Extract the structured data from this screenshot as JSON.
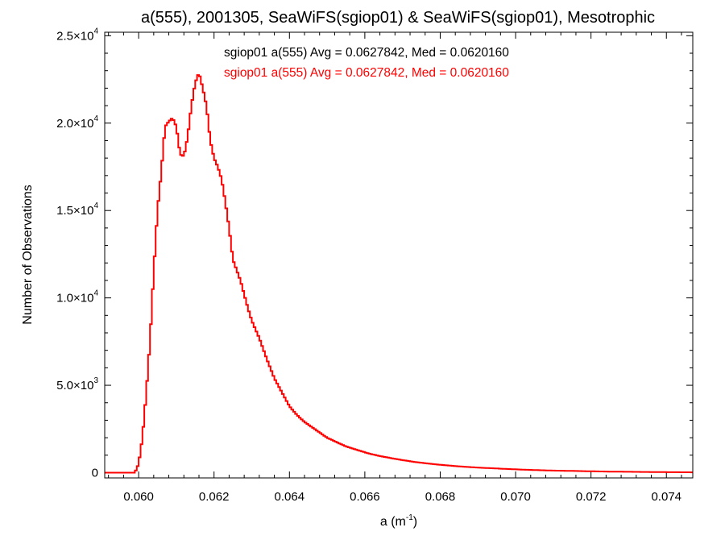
{
  "chart_data": {
    "type": "line",
    "title": "a(555), 2001305, SeaWiFS(sgiop01) & SeaWiFS(sgiop01), Mesotrophic",
    "xlabel_base": "a (m",
    "xlabel_sup": "-1",
    "xlabel_end": ")",
    "ylabel": "Number of Observations",
    "xlim": [
      0.0591,
      0.0747
    ],
    "ylim": [
      -300,
      25200
    ],
    "grid": false,
    "x_ticks": [
      {
        "value": 0.06,
        "label": "0.060"
      },
      {
        "value": 0.062,
        "label": "0.062"
      },
      {
        "value": 0.064,
        "label": "0.064"
      },
      {
        "value": 0.066,
        "label": "0.066"
      },
      {
        "value": 0.068,
        "label": "0.068"
      },
      {
        "value": 0.07,
        "label": "0.070"
      },
      {
        "value": 0.072,
        "label": "0.072"
      },
      {
        "value": 0.074,
        "label": "0.074"
      }
    ],
    "y_ticks": [
      {
        "value": 0,
        "mantissa": "0",
        "exponent": ""
      },
      {
        "value": 5000,
        "mantissa": "5.0×10",
        "exponent": "3"
      },
      {
        "value": 10000,
        "mantissa": "1.0×10",
        "exponent": "4"
      },
      {
        "value": 15000,
        "mantissa": "1.5×10",
        "exponent": "4"
      },
      {
        "value": 20000,
        "mantissa": "2.0×10",
        "exponent": "4"
      },
      {
        "value": 25000,
        "mantissa": "2.5×10",
        "exponent": "4"
      }
    ],
    "legend": [
      {
        "text": "sgiop01 a(555) Avg = 0.0627842, Med = 0.0620160",
        "color": "#000000"
      },
      {
        "text": "sgiop01 a(555) Avg = 0.0627842, Med = 0.0620160",
        "color": "#ff0000"
      }
    ],
    "series": [
      {
        "color": "#ff0000",
        "x": [
          0.0591,
          0.0598,
          0.0599,
          0.06,
          0.0601,
          0.0602,
          0.0603,
          0.0604,
          0.0605,
          0.0606,
          0.0607,
          0.0608,
          0.0609,
          0.061,
          0.0611,
          0.0612,
          0.0613,
          0.0614,
          0.0615,
          0.0616,
          0.0617,
          0.0618,
          0.0619,
          0.062,
          0.0621,
          0.0622,
          0.0623,
          0.0624,
          0.0625,
          0.0626,
          0.0627,
          0.0628,
          0.0629,
          0.063,
          0.0632,
          0.0634,
          0.0636,
          0.0638,
          0.064,
          0.0642,
          0.0644,
          0.0646,
          0.0648,
          0.065,
          0.0652,
          0.0655,
          0.0658,
          0.0661,
          0.0664,
          0.0667,
          0.067,
          0.0673,
          0.0676,
          0.068,
          0.0685,
          0.069,
          0.0695,
          0.07,
          0.0705,
          0.071,
          0.0715,
          0.072,
          0.0725,
          0.073,
          0.0735,
          0.074,
          0.0747
        ],
        "y": [
          0,
          0,
          0,
          500,
          2000,
          4500,
          7500,
          11500,
          15000,
          17200,
          19800,
          20100,
          20300,
          19800,
          18200,
          18100,
          19200,
          21000,
          22300,
          22900,
          22000,
          21000,
          19000,
          18000,
          17500,
          16800,
          15500,
          14000,
          12200,
          11600,
          11000,
          10200,
          9400,
          8700,
          7700,
          6500,
          5400,
          4600,
          3800,
          3300,
          2900,
          2600,
          2300,
          2000,
          1800,
          1500,
          1300,
          1100,
          950,
          830,
          720,
          620,
          540,
          450,
          360,
          290,
          240,
          190,
          150,
          120,
          100,
          80,
          60,
          50,
          40,
          30,
          20
        ]
      }
    ]
  }
}
